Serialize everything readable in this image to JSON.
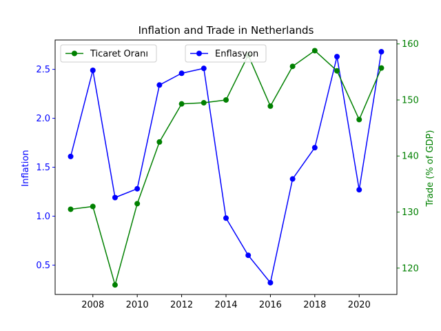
{
  "chart_data": {
    "type": "line",
    "title": "Inflation and Trade in Netherlands",
    "x": [
      2007,
      2008,
      2009,
      2010,
      2011,
      2012,
      2013,
      2014,
      2015,
      2016,
      2017,
      2018,
      2019,
      2020,
      2021
    ],
    "xlim": [
      2006.3,
      2021.7
    ],
    "xticks": [
      2008,
      2010,
      2012,
      2014,
      2016,
      2018,
      2020
    ],
    "grid": false,
    "series": [
      {
        "name": "Enflasyon",
        "axis": "left",
        "color": "#0000ff",
        "values": [
          1.61,
          2.49,
          1.19,
          1.28,
          2.34,
          2.46,
          2.51,
          0.98,
          0.6,
          0.32,
          1.38,
          1.7,
          2.63,
          1.27,
          2.68
        ]
      },
      {
        "name": "Ticaret Oranı",
        "axis": "right",
        "color": "#008000",
        "values": [
          130.5,
          131.0,
          117.0,
          131.5,
          142.5,
          149.3,
          149.5,
          150.0,
          158.0,
          148.9,
          156.0,
          158.8,
          155.2,
          146.5,
          155.7
        ]
      }
    ],
    "y_left": {
      "label": "Inflation",
      "color": "#0000ff",
      "lim": [
        0.2,
        2.8
      ],
      "ticks": [
        0.5,
        1.0,
        1.5,
        2.0,
        2.5
      ],
      "tick_labels": [
        "0.5",
        "1.0",
        "1.5",
        "2.0",
        "2.5"
      ]
    },
    "y_right": {
      "label": "Trade (% of GDP)",
      "color": "#008000",
      "lim": [
        115.3,
        160.7
      ],
      "ticks": [
        120,
        130,
        140,
        150,
        160
      ],
      "tick_labels": [
        "120",
        "130",
        "140",
        "150",
        "160"
      ]
    },
    "legends": [
      {
        "placement": "upper left",
        "series": [
          "Ticaret Oranı"
        ]
      },
      {
        "placement": "upper center",
        "series": [
          "Enflasyon"
        ]
      }
    ]
  }
}
